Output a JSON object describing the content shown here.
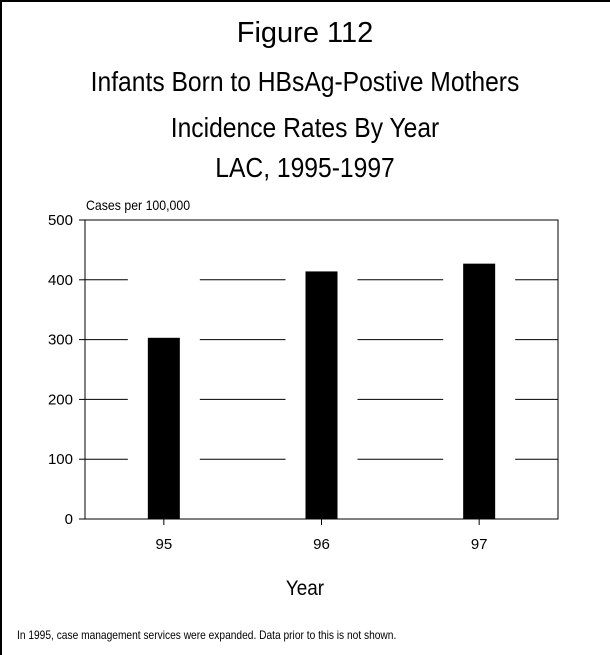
{
  "figure_label": "Figure 112",
  "note": "In 1995, case management services were expanded.  Data prior to this is not shown.",
  "chart_data": {
    "type": "bar",
    "title": "Infants Born to HBsAg-Postive Mothers",
    "subtitle": [
      "Incidence Rates By Year",
      "LAC, 1995-1997"
    ],
    "xlabel": "Year",
    "ylabel": "Cases per 100,000",
    "categories": [
      "95",
      "96",
      "97"
    ],
    "values": [
      303,
      414,
      427
    ],
    "ylim": [
      0,
      500
    ],
    "yticks": [
      0,
      100,
      200,
      300,
      400,
      500
    ],
    "grid": true,
    "bar_color": "#000000"
  }
}
